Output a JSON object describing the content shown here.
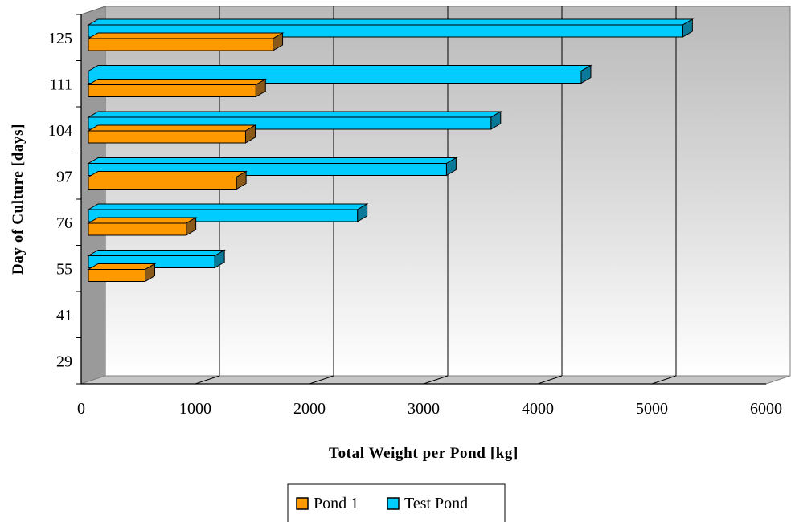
{
  "chart_data": {
    "type": "bar",
    "orientation": "horizontal",
    "three_d": true,
    "categories": [
      "29",
      "41",
      "55",
      "76",
      "97",
      "104",
      "111",
      "125"
    ],
    "series": [
      {
        "name": "Pond 1",
        "color": "#FF9900",
        "side_color": "#8A5A1A",
        "values": [
          0,
          0,
          560,
          920,
          1360,
          1440,
          1530,
          1680
        ]
      },
      {
        "name": "Test Pond",
        "color": "#00CCFF",
        "side_color": "#0A7A98",
        "values": [
          0,
          0,
          1170,
          2420,
          3200,
          3590,
          4380,
          5270
        ]
      }
    ],
    "xlabel": "Total Weight per Pond [kg]",
    "ylabel": "Day of Culture [days]",
    "xlim": [
      0,
      6000
    ],
    "xticks": [
      "0",
      "1000",
      "2000",
      "3000",
      "4000",
      "5000",
      "6000"
    ],
    "grid": true,
    "legend_position": "bottom"
  }
}
